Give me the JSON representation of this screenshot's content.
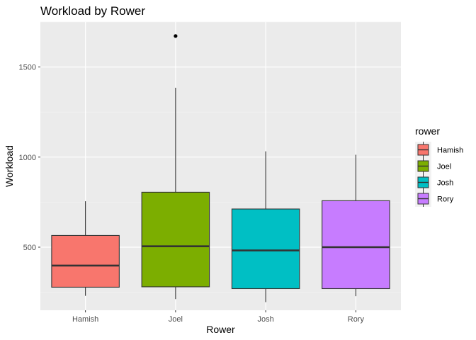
{
  "chart_data": {
    "type": "box",
    "title": "Workload by Rower",
    "xlabel": "Rower",
    "ylabel": "Workload",
    "categories": [
      "Hamish",
      "Joel",
      "Josh",
      "Rory"
    ],
    "ylim": [
      150,
      1750
    ],
    "yticks": [
      500,
      1000,
      1500
    ],
    "grid": true,
    "legend": {
      "title": "rower",
      "position": "right",
      "entries": [
        "Hamish",
        "Joel",
        "Josh",
        "Rory"
      ]
    },
    "boxes": [
      {
        "name": "Hamish",
        "color": "#F8766D",
        "whisker_low": 230,
        "q1": 278,
        "median": 398,
        "q3": 565,
        "whisker_high": 755,
        "outliers": []
      },
      {
        "name": "Joel",
        "color": "#7CAE00",
        "whisker_low": 212,
        "q1": 280,
        "median": 505,
        "q3": 805,
        "whisker_high": 1385,
        "outliers": [
          1672
        ]
      },
      {
        "name": "Josh",
        "color": "#00BFC4",
        "whisker_low": 195,
        "q1": 270,
        "median": 482,
        "q3": 712,
        "whisker_high": 1032,
        "outliers": []
      },
      {
        "name": "Rory",
        "color": "#C77CFF",
        "whisker_low": 228,
        "q1": 270,
        "median": 500,
        "q3": 758,
        "whisker_high": 1013,
        "outliers": []
      }
    ]
  }
}
